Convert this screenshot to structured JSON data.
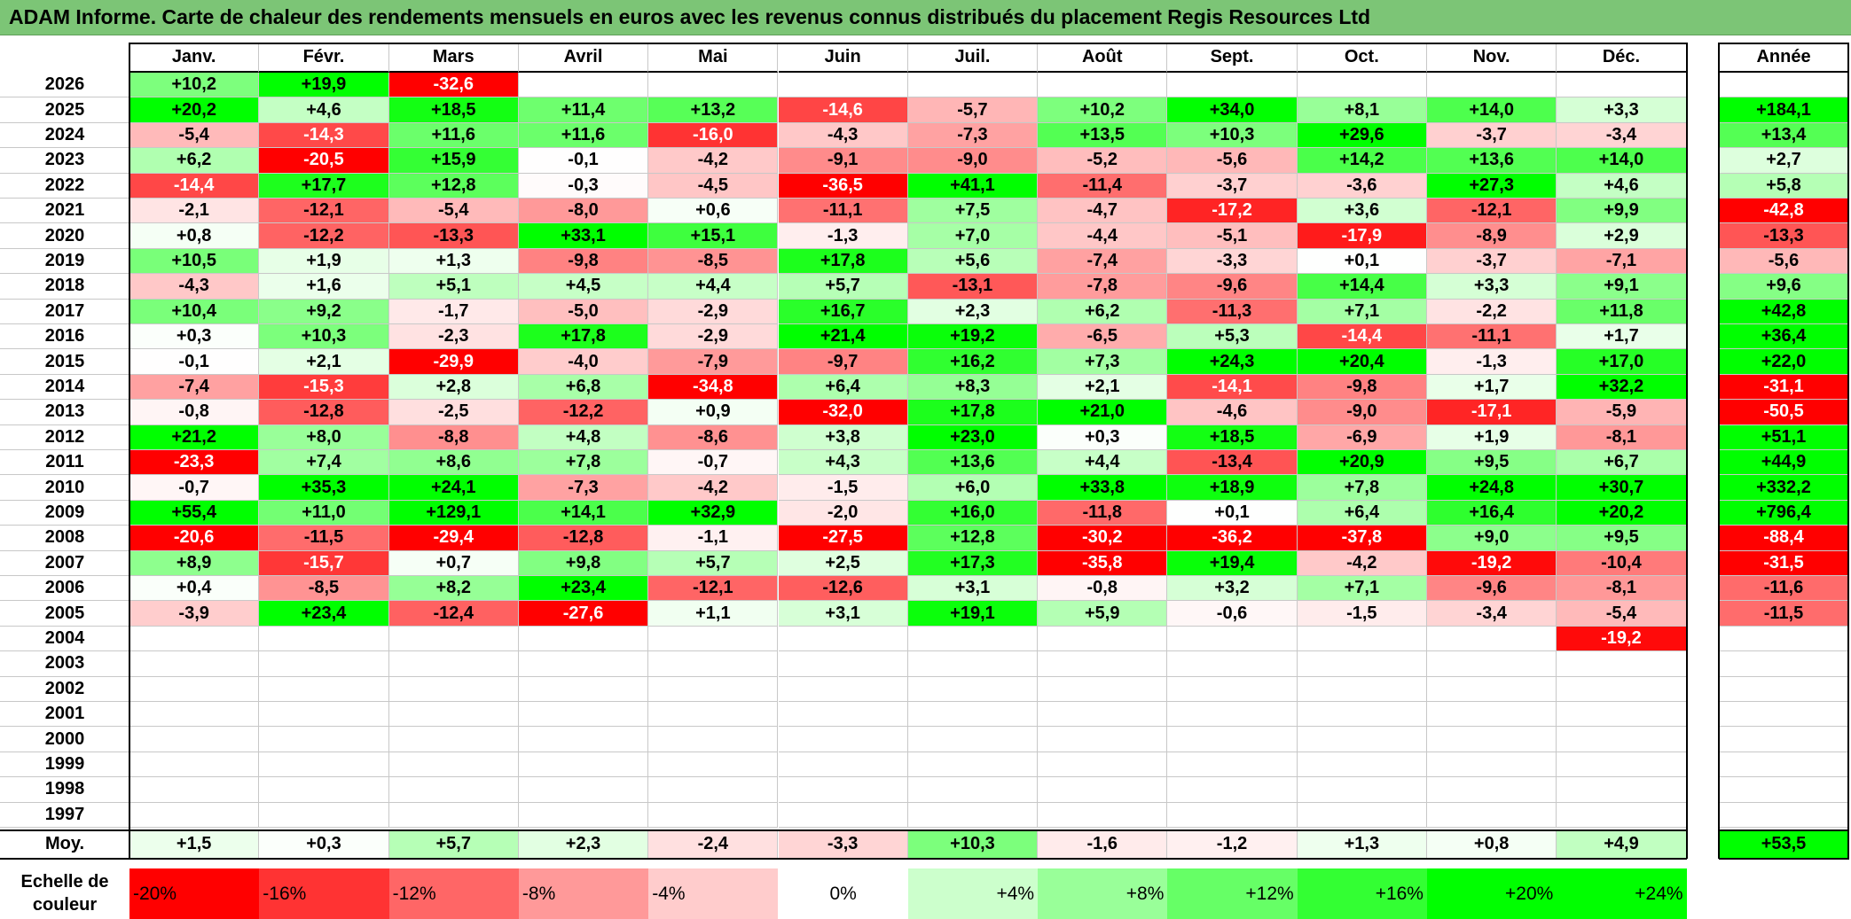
{
  "title": "ADAM Informe. Carte de chaleur des rendements mensuels en euros avec les revenus connus distribués du placement Regis Resources Ltd",
  "chart_data": {
    "type": "heatmap",
    "title": "ADAM Informe. Carte de chaleur des rendements mensuels en euros avec les revenus connus distribués du placement Regis Resources Ltd",
    "months": [
      "Janv.",
      "Févr.",
      "Mars",
      "Avril",
      "Mai",
      "Juin",
      "Juil.",
      "Août",
      "Sept.",
      "Oct.",
      "Nov.",
      "Déc."
    ],
    "year_header": "Année",
    "rows": [
      {
        "year": "2026",
        "values": [
          "+10,2",
          "+19,9",
          "-32,6",
          "",
          "",
          "",
          "",
          "",
          "",
          "",
          "",
          ""
        ],
        "annual": ""
      },
      {
        "year": "2025",
        "values": [
          "+20,2",
          "+4,6",
          "+18,5",
          "+11,4",
          "+13,2",
          "-14,6",
          "-5,7",
          "+10,2",
          "+34,0",
          "+8,1",
          "+14,0",
          "+3,3"
        ],
        "annual": "+184,1"
      },
      {
        "year": "2024",
        "values": [
          "-5,4",
          "-14,3",
          "+11,6",
          "+11,6",
          "-16,0",
          "-4,3",
          "-7,3",
          "+13,5",
          "+10,3",
          "+29,6",
          "-3,7",
          "-3,4"
        ],
        "annual": "+13,4"
      },
      {
        "year": "2023",
        "values": [
          "+6,2",
          "-20,5",
          "+15,9",
          "-0,1",
          "-4,2",
          "-9,1",
          "-9,0",
          "-5,2",
          "-5,6",
          "+14,2",
          "+13,6",
          "+14,0"
        ],
        "annual": "+2,7"
      },
      {
        "year": "2022",
        "values": [
          "-14,4",
          "+17,7",
          "+12,8",
          "-0,3",
          "-4,5",
          "-36,5",
          "+41,1",
          "-11,4",
          "-3,7",
          "-3,6",
          "+27,3",
          "+4,6"
        ],
        "annual": "+5,8"
      },
      {
        "year": "2021",
        "values": [
          "-2,1",
          "-12,1",
          "-5,4",
          "-8,0",
          "+0,6",
          "-11,1",
          "+7,5",
          "-4,7",
          "-17,2",
          "+3,6",
          "-12,1",
          "+9,9"
        ],
        "annual": "-42,8"
      },
      {
        "year": "2020",
        "values": [
          "+0,8",
          "-12,2",
          "-13,3",
          "+33,1",
          "+15,1",
          "-1,3",
          "+7,0",
          "-4,4",
          "-5,1",
          "-17,9",
          "-8,9",
          "+2,9"
        ],
        "annual": "-13,3"
      },
      {
        "year": "2019",
        "values": [
          "+10,5",
          "+1,9",
          "+1,3",
          "-9,8",
          "-8,5",
          "+17,8",
          "+5,6",
          "-7,4",
          "-3,3",
          "+0,1",
          "-3,7",
          "-7,1"
        ],
        "annual": "-5,6"
      },
      {
        "year": "2018",
        "values": [
          "-4,3",
          "+1,6",
          "+5,1",
          "+4,5",
          "+4,4",
          "+5,7",
          "-13,1",
          "-7,8",
          "-9,6",
          "+14,4",
          "+3,3",
          "+9,1"
        ],
        "annual": "+9,6"
      },
      {
        "year": "2017",
        "values": [
          "+10,4",
          "+9,2",
          "-1,7",
          "-5,0",
          "-2,9",
          "+16,7",
          "+2,3",
          "+6,2",
          "-11,3",
          "+7,1",
          "-2,2",
          "+11,8"
        ],
        "annual": "+42,8"
      },
      {
        "year": "2016",
        "values": [
          "+0,3",
          "+10,3",
          "-2,3",
          "+17,8",
          "-2,9",
          "+21,4",
          "+19,2",
          "-6,5",
          "+5,3",
          "-14,4",
          "-11,1",
          "+1,7"
        ],
        "annual": "+36,4"
      },
      {
        "year": "2015",
        "values": [
          "-0,1",
          "+2,1",
          "-29,9",
          "-4,0",
          "-7,9",
          "-9,7",
          "+16,2",
          "+7,3",
          "+24,3",
          "+20,4",
          "-1,3",
          "+17,0"
        ],
        "annual": "+22,0"
      },
      {
        "year": "2014",
        "values": [
          "-7,4",
          "-15,3",
          "+2,8",
          "+6,8",
          "-34,8",
          "+6,4",
          "+8,3",
          "+2,1",
          "-14,1",
          "-9,8",
          "+1,7",
          "+32,2"
        ],
        "annual": "-31,1"
      },
      {
        "year": "2013",
        "values": [
          "-0,8",
          "-12,8",
          "-2,5",
          "-12,2",
          "+0,9",
          "-32,0",
          "+17,8",
          "+21,0",
          "-4,6",
          "-9,0",
          "-17,1",
          "-5,9"
        ],
        "annual": "-50,5"
      },
      {
        "year": "2012",
        "values": [
          "+21,2",
          "+8,0",
          "-8,8",
          "+4,8",
          "-8,6",
          "+3,8",
          "+23,0",
          "+0,3",
          "+18,5",
          "-6,9",
          "+1,9",
          "-8,1"
        ],
        "annual": "+51,1"
      },
      {
        "year": "2011",
        "values": [
          "-23,3",
          "+7,4",
          "+8,6",
          "+7,8",
          "-0,7",
          "+4,3",
          "+13,6",
          "+4,4",
          "-13,4",
          "+20,9",
          "+9,5",
          "+6,7"
        ],
        "annual": "+44,9"
      },
      {
        "year": "2010",
        "values": [
          "-0,7",
          "+35,3",
          "+24,1",
          "-7,3",
          "-4,2",
          "-1,5",
          "+6,0",
          "+33,8",
          "+18,9",
          "+7,8",
          "+24,8",
          "+30,7"
        ],
        "annual": "+332,2"
      },
      {
        "year": "2009",
        "values": [
          "+55,4",
          "+11,0",
          "+129,1",
          "+14,1",
          "+32,9",
          "-2,0",
          "+16,0",
          "-11,8",
          "+0,1",
          "+6,4",
          "+16,4",
          "+20,2"
        ],
        "annual": "+796,4"
      },
      {
        "year": "2008",
        "values": [
          "-20,6",
          "-11,5",
          "-29,4",
          "-12,8",
          "-1,1",
          "-27,5",
          "+12,8",
          "-30,2",
          "-36,2",
          "-37,8",
          "+9,0",
          "+9,5"
        ],
        "annual": "-88,4"
      },
      {
        "year": "2007",
        "values": [
          "+8,9",
          "-15,7",
          "+0,7",
          "+9,8",
          "+5,7",
          "+2,5",
          "+17,3",
          "-35,8",
          "+19,4",
          "-4,2",
          "-19,2",
          "-10,4"
        ],
        "annual": "-31,5"
      },
      {
        "year": "2006",
        "values": [
          "+0,4",
          "-8,5",
          "+8,2",
          "+23,4",
          "-12,1",
          "-12,6",
          "+3,1",
          "-0,8",
          "+3,2",
          "+7,1",
          "-9,6",
          "-8,1"
        ],
        "annual": "-11,6"
      },
      {
        "year": "2005",
        "values": [
          "-3,9",
          "+23,4",
          "-12,4",
          "-27,6",
          "+1,1",
          "+3,1",
          "+19,1",
          "+5,9",
          "-0,6",
          "-1,5",
          "-3,4",
          "-5,4"
        ],
        "annual": "-11,5"
      },
      {
        "year": "2004",
        "values": [
          "",
          "",
          "",
          "",
          "",
          "",
          "",
          "",
          "",
          "",
          "",
          "-19,2"
        ],
        "annual": ""
      },
      {
        "year": "2003",
        "values": [
          "",
          "",
          "",
          "",
          "",
          "",
          "",
          "",
          "",
          "",
          "",
          ""
        ],
        "annual": ""
      },
      {
        "year": "2002",
        "values": [
          "",
          "",
          "",
          "",
          "",
          "",
          "",
          "",
          "",
          "",
          "",
          ""
        ],
        "annual": ""
      },
      {
        "year": "2001",
        "values": [
          "",
          "",
          "",
          "",
          "",
          "",
          "",
          "",
          "",
          "",
          "",
          ""
        ],
        "annual": ""
      },
      {
        "year": "2000",
        "values": [
          "",
          "",
          "",
          "",
          "",
          "",
          "",
          "",
          "",
          "",
          "",
          ""
        ],
        "annual": ""
      },
      {
        "year": "1999",
        "values": [
          "",
          "",
          "",
          "",
          "",
          "",
          "",
          "",
          "",
          "",
          "",
          ""
        ],
        "annual": ""
      },
      {
        "year": "1998",
        "values": [
          "",
          "",
          "",
          "",
          "",
          "",
          "",
          "",
          "",
          "",
          "",
          ""
        ],
        "annual": ""
      },
      {
        "year": "1997",
        "values": [
          "",
          "",
          "",
          "",
          "",
          "",
          "",
          "",
          "",
          "",
          "",
          ""
        ],
        "annual": ""
      }
    ],
    "average": {
      "label": "Moy.",
      "values": [
        "+1,5",
        "+0,3",
        "+5,7",
        "+2,3",
        "-2,4",
        "-3,3",
        "+10,3",
        "-1,6",
        "-1,2",
        "+1,3",
        "+0,8",
        "+4,9"
      ],
      "annual": "+53,5"
    },
    "color_scale": {
      "label": "Echelle de\ncouleur",
      "stops": [
        "-20%",
        "-16%",
        "-12%",
        "-8%",
        "-4%",
        "0%",
        "+4%",
        "+8%",
        "+12%",
        "+16%",
        "+20%",
        "+24%"
      ],
      "colors": [
        "#ff0000",
        "#ff3333",
        "#ff6666",
        "#ff9999",
        "#ffcccc",
        "#ffffff",
        "#ccffcc",
        "#99ff99",
        "#66ff66",
        "#33ff33",
        "#00ff00",
        "#00ff00"
      ]
    },
    "colors": {
      "negative": "#ff0000",
      "neutral": "#ffffff",
      "positive": "#00ff00"
    }
  }
}
